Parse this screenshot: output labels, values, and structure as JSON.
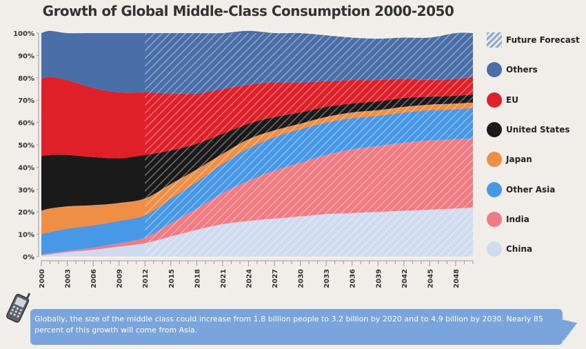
{
  "title": "Growth of Global Middle-Class Consumption 2000-2050",
  "footnote": "Globally, the size of the middle class could increase from 1.8 billion people to 3.2 billion by 2020 and to 4.9 billion by 2030. Nearly 85 percent of this growth will come from Asia.",
  "legend": [
    {
      "label": "Future Forecast",
      "color": "#8aa9d8",
      "hatch": true
    },
    {
      "label": "Others",
      "color": "#4a6fa8"
    },
    {
      "label": "EU",
      "color": "#e02028"
    },
    {
      "label": "United States",
      "color": "#1a1a1a"
    },
    {
      "label": "Japan",
      "color": "#ef8f45"
    },
    {
      "label": "Other Asia",
      "color": "#4898e8"
    },
    {
      "label": "India",
      "color": "#f07b82"
    },
    {
      "label": "China",
      "color": "#cfdcf0"
    }
  ],
  "chart_data": {
    "type": "area",
    "stacked": true,
    "x": [
      2000,
      2001,
      2003,
      2006,
      2009,
      2012,
      2015,
      2018,
      2021,
      2024,
      2027,
      2030,
      2033,
      2036,
      2039,
      2042,
      2045,
      2048,
      2050
    ],
    "xticks": [
      2000,
      2003,
      2006,
      2009,
      2012,
      2015,
      2018,
      2021,
      2024,
      2027,
      2030,
      2033,
      2036,
      2039,
      2042,
      2045,
      2048
    ],
    "yticks": [
      "0%",
      "10%",
      "20%",
      "30%",
      "40%",
      "50%",
      "60%",
      "70%",
      "80%",
      "90%",
      "100%"
    ],
    "ylim": [
      0,
      100
    ],
    "forecast_start": 2012,
    "series": [
      {
        "name": "China",
        "color": "#cfdcf0",
        "values": [
          0.5,
          1,
          2,
          3,
          4.5,
          6,
          9,
          12,
          14.5,
          16,
          17,
          18,
          19,
          19.5,
          20,
          20.5,
          21,
          21.5,
          22
        ]
      },
      {
        "name": "India",
        "color": "#f07b82",
        "values": [
          0.5,
          0.5,
          0.5,
          1,
          1.5,
          2.5,
          6,
          9.5,
          14,
          18,
          21.5,
          24,
          26.5,
          28.5,
          29.5,
          30.5,
          31,
          31,
          31
        ]
      },
      {
        "name": "Other Asia",
        "color": "#4898e8",
        "values": [
          9,
          9.5,
          10,
          10,
          10,
          10,
          11,
          12,
          13,
          14.5,
          15,
          15,
          14.5,
          14,
          13.5,
          13.5,
          13.5,
          13.5,
          13.5
        ]
      },
      {
        "name": "Japan",
        "color": "#ef8f45",
        "values": [
          10.5,
          10.5,
          10,
          9,
          8,
          7.5,
          6.5,
          5.5,
          4.5,
          4,
          3,
          2.5,
          2.5,
          2.5,
          2.5,
          2.5,
          2.5,
          2.5,
          2.5
        ]
      },
      {
        "name": "United States",
        "color": "#1a1a1a",
        "values": [
          24.5,
          24,
          23,
          21.5,
          20,
          19.5,
          15,
          11.5,
          9,
          7,
          6,
          5,
          4.5,
          4,
          4,
          4,
          3.5,
          3.5,
          3.5
        ]
      },
      {
        "name": "EU",
        "color": "#e02028",
        "values": [
          34.5,
          35,
          33.5,
          31,
          29.5,
          28,
          25.5,
          22.5,
          20,
          17.5,
          15.5,
          13.5,
          11.5,
          10.5,
          9.5,
          8.5,
          7.5,
          7.5,
          8
        ]
      },
      {
        "name": "Others",
        "color": "#4a6fa8",
        "values": [
          20.5,
          20.5,
          21,
          24.5,
          26.5,
          26.5,
          27,
          27,
          25,
          24,
          22,
          22,
          20.5,
          19,
          18.5,
          18.5,
          19,
          20.5,
          19.5
        ]
      }
    ]
  }
}
